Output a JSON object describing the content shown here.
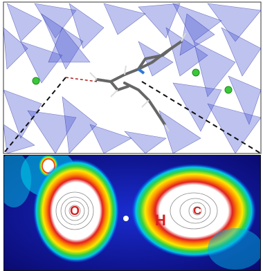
{
  "labels": {
    "oxygen": "O",
    "hydrogen": "H",
    "carbon": "C"
  }
}
